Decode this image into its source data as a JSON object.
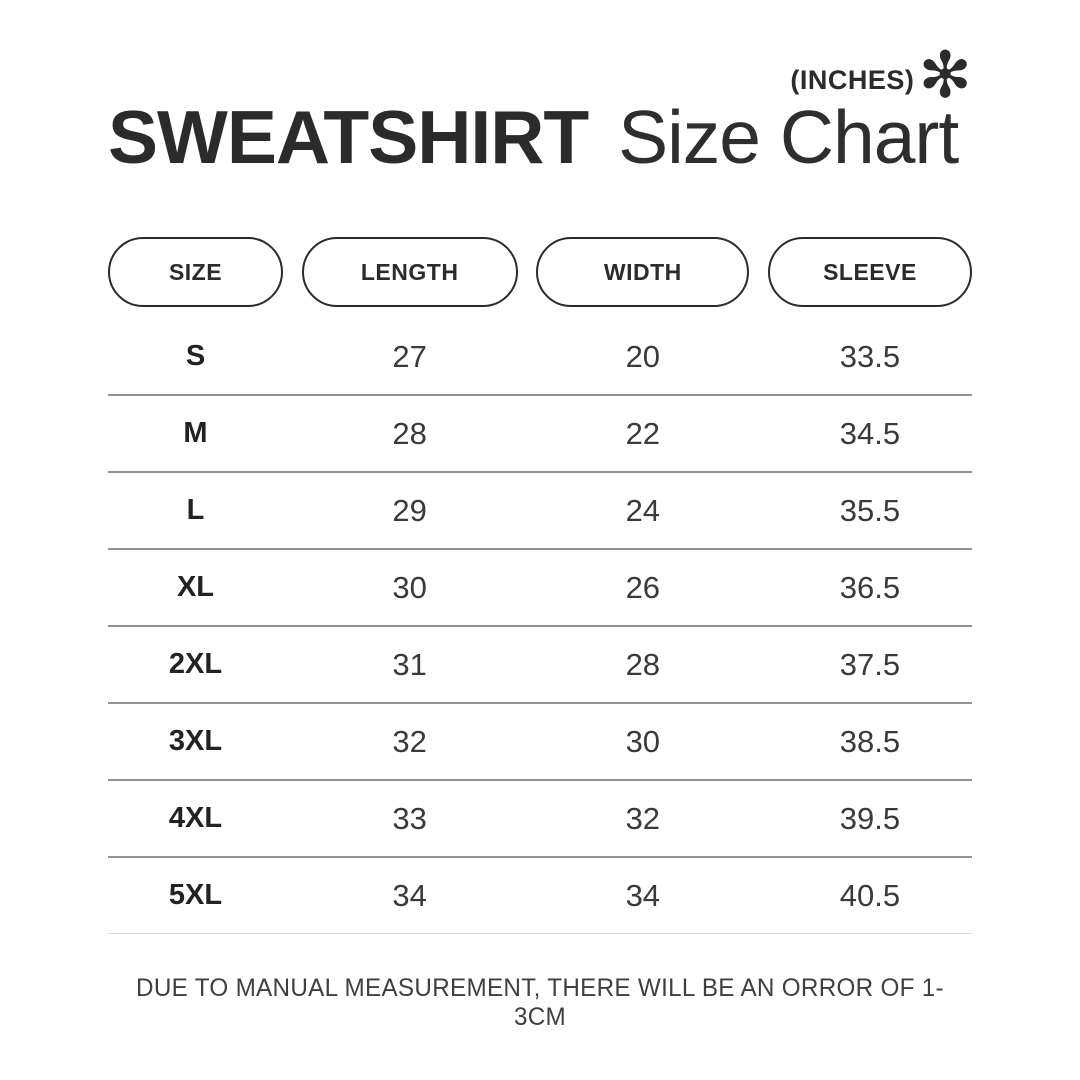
{
  "unit": {
    "label": "(INCHES)",
    "asterisk": "✻"
  },
  "title": {
    "bold": "SWEATSHIRT",
    "regular": "Size Chart"
  },
  "columns": [
    "SIZE",
    "LENGTH",
    "WIDTH",
    "SLEEVE"
  ],
  "rows": [
    {
      "size": "S",
      "length": "27",
      "width": "20",
      "sleeve": "33.5"
    },
    {
      "size": "M",
      "length": "28",
      "width": "22",
      "sleeve": "34.5"
    },
    {
      "size": "L",
      "length": "29",
      "width": "24",
      "sleeve": "35.5"
    },
    {
      "size": "XL",
      "length": "30",
      "width": "26",
      "sleeve": "36.5"
    },
    {
      "size": "2XL",
      "length": "31",
      "width": "28",
      "sleeve": "37.5"
    },
    {
      "size": "3XL",
      "length": "32",
      "width": "30",
      "sleeve": "38.5"
    },
    {
      "size": "4XL",
      "length": "33",
      "width": "32",
      "sleeve": "39.5"
    },
    {
      "size": "5XL",
      "length": "34",
      "width": "34",
      "sleeve": "40.5"
    }
  ],
  "footnote": "DUE TO MANUAL MEASUREMENT, THERE WILL BE AN ORROR OF 1-3CM",
  "colors": {
    "text_dark": "#2b2b2b",
    "text_value": "#3a3a3a",
    "separator": "#919191",
    "separator_light": "#d9d9d9",
    "background": "#ffffff"
  }
}
